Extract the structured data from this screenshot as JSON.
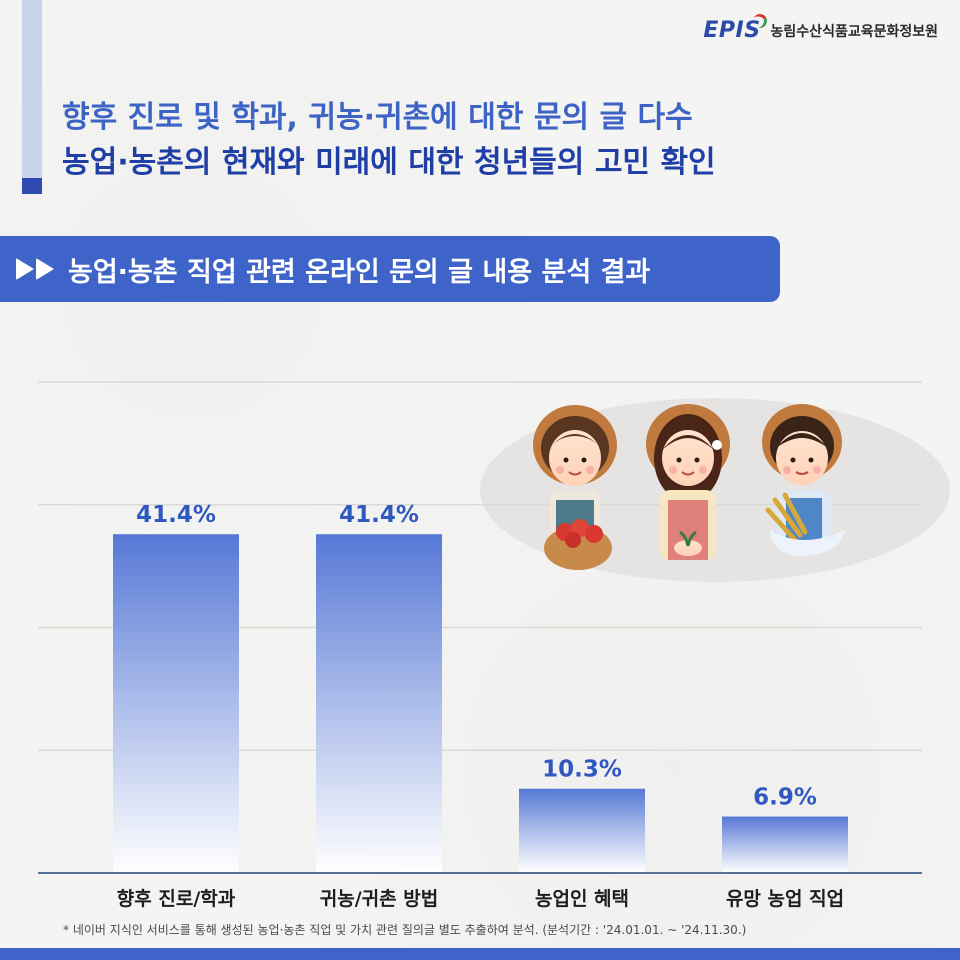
{
  "brand": {
    "logo_text": "EPIS",
    "org_name": "농림수산식품교육문화정보원"
  },
  "headline": {
    "line1": "향후 진로 및 학과, 귀농·귀촌에 대한 문의 글 다수",
    "line2": "농업·농촌의 현재와 미래에 대한 청년들의 고민 확인"
  },
  "banner": {
    "title": "농업·농촌 직업 관련 온라인 문의 글 내용 분석 결과"
  },
  "footnote": "* 네이버 지식인 서비스를 통해 생성된 농업·농촌 직업 및 가치 관련 질의글 별도 추출하여 분석. (분석기간 : '24.01.01. ~ '24.11.30.)",
  "colors": {
    "accent": "#3e63c9",
    "dark_accent": "#1f3fa6",
    "label": "#2f58c0",
    "bar_top": "#5678d6",
    "bar_bottom": "#ffffff"
  },
  "illustration": {
    "farmers": [
      "farmer-with-tomatoes",
      "farmer-with-seedling",
      "farmer-with-wheat"
    ]
  },
  "chart_data": {
    "type": "bar",
    "categories": [
      "향후 진로/학과",
      "귀농/귀촌 방법",
      "농업인 혜택",
      "유망 농업 직업"
    ],
    "values": [
      41.4,
      41.4,
      10.3,
      6.9
    ],
    "data_labels": [
      "41.4%",
      "41.4%",
      "10.3%",
      "6.9%"
    ],
    "unit": "%",
    "title": "",
    "xlabel": "",
    "ylabel": "",
    "ylim": [
      0,
      60
    ],
    "grid": true,
    "legend": "none"
  }
}
